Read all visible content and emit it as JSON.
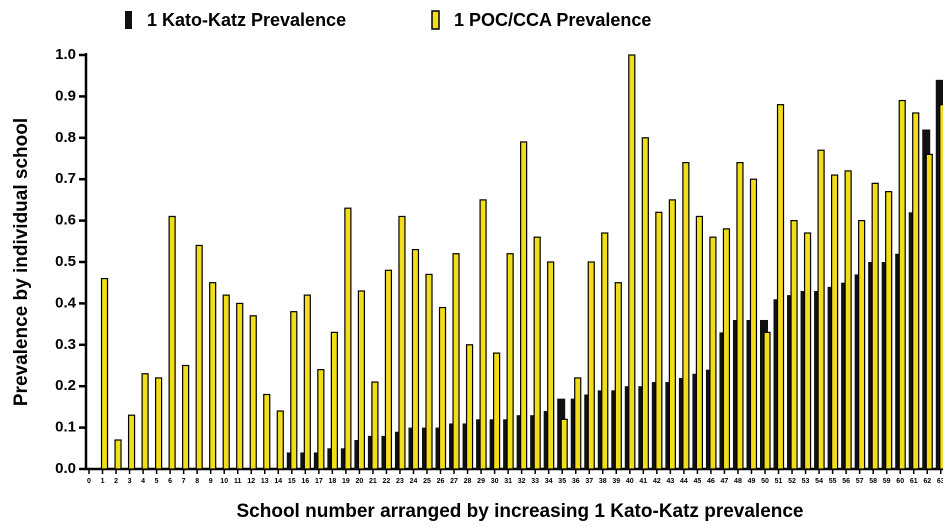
{
  "chart_data": {
    "type": "bar",
    "xlabel": "School number arranged by increasing 1 Kato-Katz prevalence",
    "ylabel": "Prevalence by individual school",
    "categories": [
      0,
      1,
      2,
      3,
      4,
      5,
      6,
      7,
      8,
      9,
      10,
      11,
      12,
      13,
      14,
      15,
      16,
      17,
      18,
      19,
      20,
      21,
      22,
      23,
      24,
      25,
      26,
      27,
      28,
      29,
      30,
      31,
      32,
      33,
      34,
      35,
      36,
      37,
      38,
      39,
      40,
      41,
      42,
      43,
      44,
      45,
      46,
      47,
      48,
      49,
      50,
      51,
      52,
      53,
      54,
      55,
      56,
      57,
      58,
      59,
      60,
      61,
      62,
      63
    ],
    "series": [
      {
        "name": "1 Kato-Katz Prevalence",
        "color": "#111111",
        "values": [
          0,
          0,
          0,
          0,
          0,
          0,
          0,
          0,
          0,
          0,
          0,
          0,
          0,
          0,
          0,
          0.04,
          0.04,
          0.04,
          0.05,
          0.05,
          0.07,
          0.08,
          0.08,
          0.09,
          0.1,
          0.1,
          0.1,
          0.11,
          0.11,
          0.12,
          0.12,
          0.12,
          0.13,
          0.13,
          0.14,
          0.17,
          0.17,
          0.18,
          0.19,
          0.19,
          0.2,
          0.2,
          0.21,
          0.21,
          0.22,
          0.23,
          0.24,
          0.33,
          0.36,
          0.36,
          0.36,
          0.41,
          0.42,
          0.43,
          0.43,
          0.44,
          0.45,
          0.47,
          0.5,
          0.5,
          0.52,
          0.62,
          0.82,
          0.94
        ]
      },
      {
        "name": "1 POC/CCA Prevalence",
        "color": "#f2dd1a",
        "values": [
          0,
          0.46,
          0.07,
          0.13,
          0.23,
          0.22,
          0.61,
          0.25,
          0.54,
          0.45,
          0.42,
          0.4,
          0.37,
          0.18,
          0.14,
          0.38,
          0.42,
          0.24,
          0.33,
          0.63,
          0.43,
          0.21,
          0.48,
          0.61,
          0.53,
          0.47,
          0.39,
          0.52,
          0.3,
          0.65,
          0.28,
          0.52,
          0.79,
          0.56,
          0.5,
          0.12,
          0.22,
          0.5,
          0.57,
          0.45,
          1.0,
          0.8,
          0.62,
          0.65,
          0.74,
          0.61,
          0.56,
          0.58,
          0.74,
          0.7,
          0.33,
          0.88,
          0.6,
          0.57,
          0.77,
          0.71,
          0.72,
          0.6,
          0.69,
          0.67,
          0.89,
          0.86,
          0.76,
          0.88
        ]
      }
    ],
    "ylim": [
      0,
      1.0
    ],
    "yticks": [
      {
        "value": 0,
        "label": "0.0"
      },
      0.1,
      0.2,
      0.3,
      0.4,
      0.5,
      0.6,
      0.7,
      0.8,
      0.9,
      {
        "value": 1.0,
        "label": "1.0"
      }
    ],
    "grid": false
  }
}
